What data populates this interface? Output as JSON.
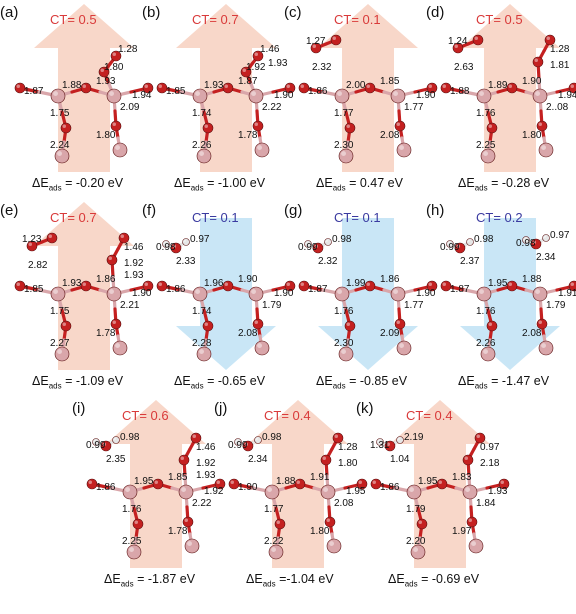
{
  "colors": {
    "ct_positive": "#d93a3a",
    "ct_negative": "#3a3aa0",
    "arrow_up": "#f7d0bf",
    "arrow_down": "#bfe2f5",
    "cu_atom": "#d9a6aa",
    "o_atom": "#c42020",
    "h_atom": "#e6e6e6"
  },
  "panels": [
    {
      "label": "(a)",
      "ct": "CT= 0.5",
      "ct_sign": "positive",
      "arrow": "up",
      "energy_prefix": "ΔE",
      "energy_sub": "ads",
      "energy_value": "= -0.20 eV",
      "adsorbate": "none",
      "bonds": [
        "1.87",
        "1.88",
        "1.93",
        "1.94",
        "1.75",
        "2.09",
        "1.80",
        "2.24",
        "1.28",
        "1.80"
      ]
    },
    {
      "label": "(b)",
      "ct": "CT= 0.7",
      "ct_sign": "positive",
      "arrow": "up",
      "energy_prefix": "ΔE",
      "energy_sub": "ads",
      "energy_value": "= -1.00 eV",
      "adsorbate": "none",
      "bonds": [
        "1.85",
        "1.93",
        "1.87",
        "1.90",
        "1.74",
        "2.22",
        "1.78",
        "2.26",
        "1.46",
        "1.92",
        "1.93"
      ]
    },
    {
      "label": "(c)",
      "ct": "CT= 0.1",
      "ct_sign": "positive",
      "arrow": "up",
      "energy_prefix": "ΔE",
      "energy_sub": "ads",
      "energy_value": "= 0.47 eV",
      "adsorbate": "O2",
      "bonds": [
        "1.86",
        "2.00",
        "1.85",
        "1.90",
        "1.77",
        "1.77",
        "2.08",
        "2.30",
        "1.27",
        "2.32"
      ]
    },
    {
      "label": "(d)",
      "ct": "CT= 0.5",
      "ct_sign": "positive",
      "arrow": "up",
      "energy_prefix": "ΔE",
      "energy_sub": "ads",
      "energy_value": "= -0.28 eV",
      "adsorbate": "O2",
      "bonds": [
        "1.88",
        "1.89",
        "1.90",
        "1.94",
        "1.76",
        "2..08",
        "1.80",
        "2.25",
        "1.24",
        "2.63",
        "1.28",
        "1.81"
      ]
    },
    {
      "label": "(e)",
      "ct": "CT= 0.7",
      "ct_sign": "positive",
      "arrow": "up",
      "energy_prefix": "ΔE",
      "energy_sub": "ads",
      "energy_value": "= -1.09 eV",
      "adsorbate": "O2",
      "bonds": [
        "1.85",
        "1.93",
        "1.86",
        "1.90",
        "1.75",
        "2.21",
        "1.78",
        "2.27",
        "1.23",
        "2.82",
        "1.46",
        "1.92",
        "1.93"
      ]
    },
    {
      "label": "(f)",
      "ct": "CT= 0.1",
      "ct_sign": "negative",
      "arrow": "down",
      "energy_prefix": "ΔE",
      "energy_sub": "ads",
      "energy_value": "= -0.65 eV",
      "adsorbate": "H2O",
      "bonds": [
        "1.86",
        "1.96",
        "1.90",
        "1.90",
        "1.74",
        "1.79",
        "2.08",
        "2.28",
        "0.98",
        "0.97",
        "2.33"
      ]
    },
    {
      "label": "(g)",
      "ct": "CT= 0.1",
      "ct_sign": "negative",
      "arrow": "down",
      "energy_prefix": "ΔE",
      "energy_sub": "ads",
      "energy_value": "= -0.85 eV",
      "adsorbate": "H2O",
      "bonds": [
        "1.87",
        "1.99",
        "1.86",
        "1.90",
        "1.76",
        "1.77",
        "2.09",
        "2.30",
        "0.99",
        "0.98",
        "2.32"
      ]
    },
    {
      "label": "(h)",
      "ct": "CT= 0.2",
      "ct_sign": "negative",
      "arrow": "down",
      "energy_prefix": "ΔE",
      "energy_sub": "ads",
      "energy_value": "= -1.47 eV",
      "adsorbate": "2H2O",
      "bonds": [
        "1.87",
        "1.95",
        "1.88",
        "1.91",
        "1.76",
        "1.79",
        "2.08",
        "2.26",
        "0.99",
        "0.98",
        "2.37",
        "0.98",
        "0.97",
        "2.34"
      ]
    },
    {
      "label": "(i)",
      "ct": "CT= 0.6",
      "ct_sign": "positive",
      "arrow": "up",
      "energy_prefix": "ΔE",
      "energy_sub": "ads",
      "energy_value": "= -1.87 eV",
      "adsorbate": "H2O",
      "bonds": [
        "1.86",
        "1.95",
        "1.85",
        "1.92",
        "1.76",
        "2.22",
        "1.78",
        "2.25",
        "0.99",
        "0.98",
        "2.35",
        "1.46",
        "1.92",
        "1.93"
      ]
    },
    {
      "label": "(j)",
      "ct": "CT= 0.4",
      "ct_sign": "positive",
      "arrow": "up",
      "energy_prefix": "ΔE",
      "energy_sub": "ads",
      "energy_value": "=-1.04 eV",
      "adsorbate": "H2O",
      "bonds": [
        "1.90",
        "1.88",
        "1.91",
        "1.95",
        "1.77",
        "2.08",
        "1.80",
        "2.22",
        "0.99",
        "0.98",
        "2.34",
        "1.28",
        "1.80"
      ]
    },
    {
      "label": "(k)",
      "ct": "CT= 0.4",
      "ct_sign": "positive",
      "arrow": "up",
      "energy_prefix": "ΔE",
      "energy_sub": "ads",
      "energy_value": "= -0.69 eV",
      "adsorbate": "H2O",
      "bonds": [
        "1.86",
        "1.95",
        "1.83",
        "1.93",
        "1.79",
        "1.84",
        "1.97",
        "2.20",
        "1.31",
        "2.19",
        "1.04",
        "0.97",
        "2.18"
      ]
    }
  ]
}
